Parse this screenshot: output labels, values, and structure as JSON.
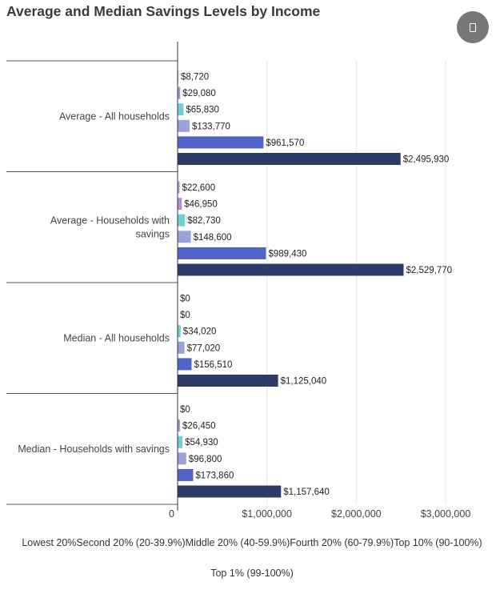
{
  "chart_data": {
    "type": "bar",
    "orientation": "horizontal",
    "title": "Average and Median Savings Levels by Income",
    "categories": [
      [
        "Average - All households"
      ],
      [
        "Average - Households with",
        "savings"
      ],
      [
        "Median - All households"
      ],
      [
        "Median - Households with savings"
      ]
    ],
    "series": [
      {
        "name": "Lowest 20%",
        "color": "#a9a2c9",
        "values": [
          8720,
          22600,
          0,
          0
        ],
        "labels": [
          "$8,720",
          "$22,600",
          "$0",
          "$0"
        ]
      },
      {
        "name": "Second 20% (20-39.9%)",
        "color": "#b38fcf",
        "values": [
          29080,
          46950,
          0,
          26450
        ],
        "labels": [
          "$29,080",
          "$46,950",
          "$0",
          "$26,450"
        ]
      },
      {
        "name": "Middle 20% (40-59.9%)",
        "color": "#6fcfd1",
        "values": [
          65830,
          82730,
          34020,
          54930
        ],
        "labels": [
          "$65,830",
          "$82,730",
          "$34,020",
          "$54,930"
        ]
      },
      {
        "name": "Fourth 20% (60-79.9%)",
        "color": "#9aa3d8",
        "values": [
          133770,
          148600,
          77020,
          96800
        ],
        "labels": [
          "$133,770",
          "$148,600",
          "$77,020",
          "$96,800"
        ]
      },
      {
        "name": "Top 10% (90-100%)",
        "color": "#4f63c9",
        "values": [
          961570,
          989430,
          156510,
          173860
        ],
        "labels": [
          "$961,570",
          "$989,430",
          "$156,510",
          "$173,860"
        ]
      },
      {
        "name": "Top 1% (99-100%)",
        "color": "#2b3a67",
        "values": [
          2495930,
          2529770,
          1125040,
          1157640
        ],
        "labels": [
          "$2,495,930",
          "$2,529,770",
          "$1,125,040",
          "$1,157,640"
        ]
      }
    ],
    "xlim": [
      0,
      3000000
    ],
    "xticks": [
      0,
      1000000,
      2000000,
      3000000
    ],
    "xtick_labels": [
      "0",
      "$1,000,000",
      "$2,000,000",
      "$3,000,000"
    ],
    "grid": true,
    "legend_position": "bottom"
  }
}
